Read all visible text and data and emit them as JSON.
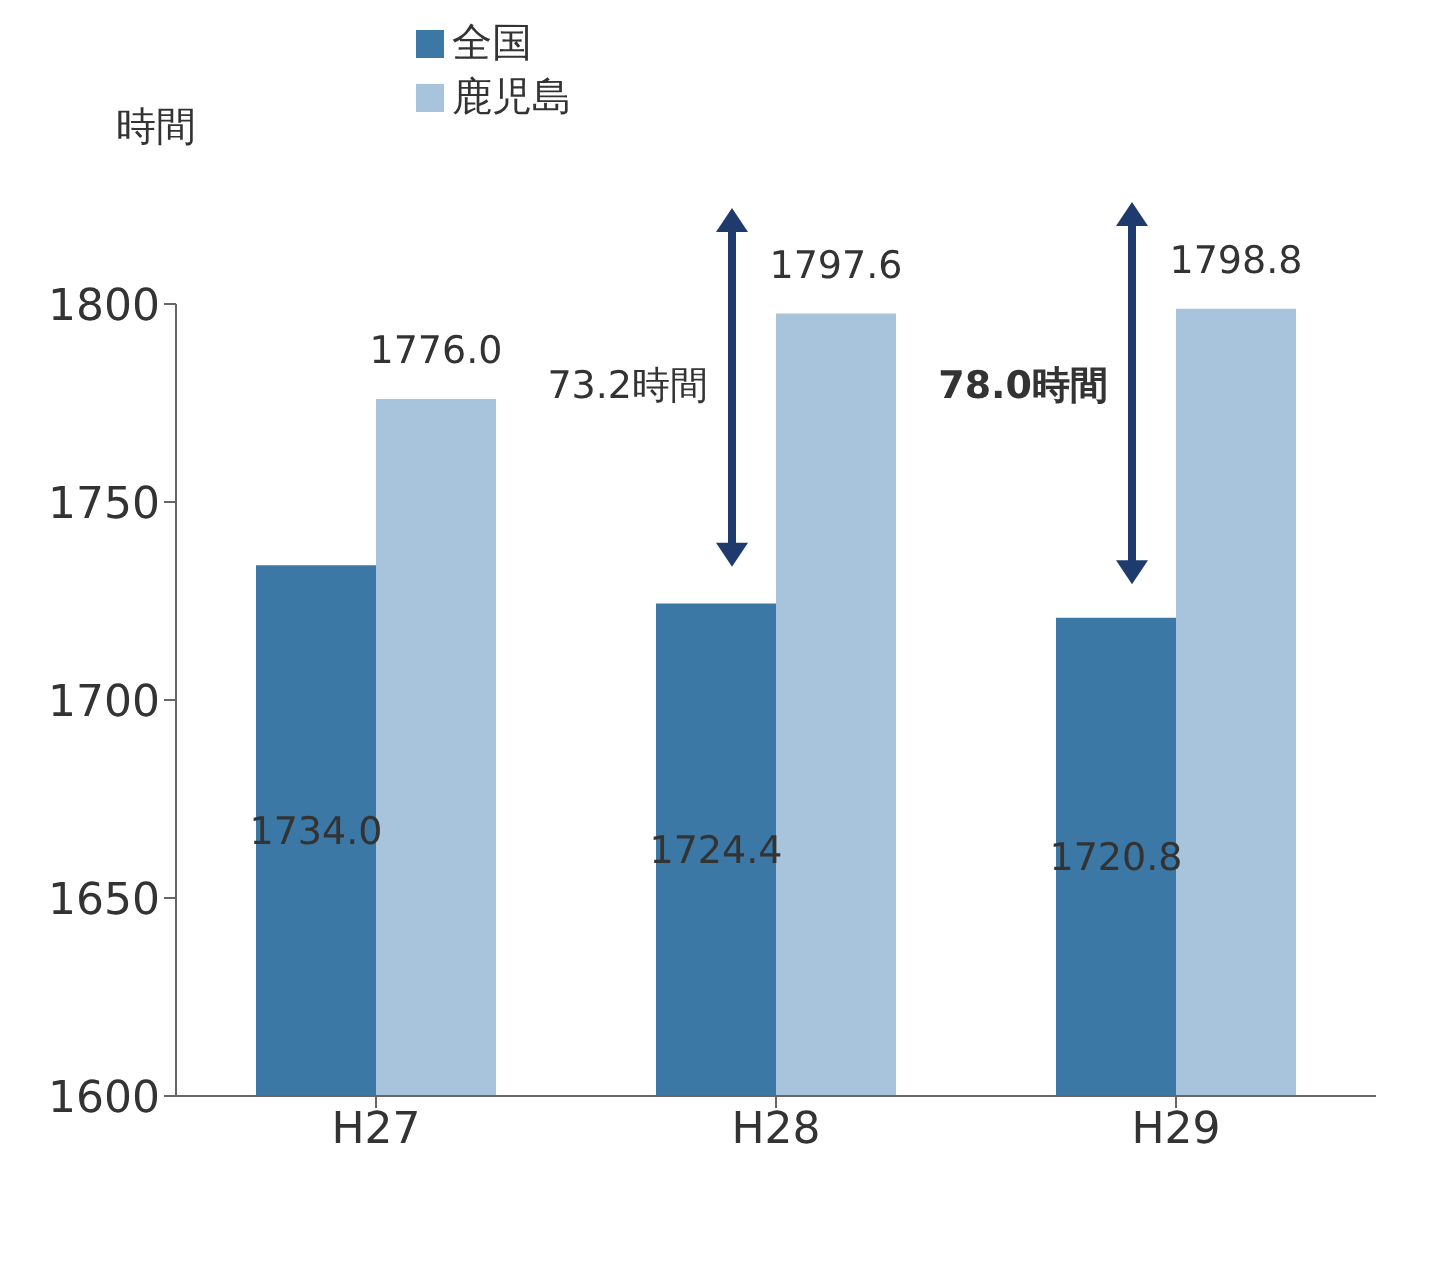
{
  "chart_data": {
    "type": "bar",
    "ylabel": "時間",
    "categories": [
      "H27",
      "H28",
      "H29"
    ],
    "series": [
      {
        "name": "全国",
        "color": "#3b78a6",
        "values": [
          1734.0,
          1724.4,
          1720.8
        ],
        "value_labels": [
          "1734.0",
          "1724.4",
          "1720.8"
        ]
      },
      {
        "name": "鹿児島",
        "color": "#a8c3dc",
        "values": [
          1776.0,
          1797.6,
          1798.8
        ],
        "value_labels": [
          "1776.0",
          "1797.6",
          "1798.8"
        ]
      }
    ],
    "ylim": [
      1600,
      1800
    ],
    "yticks": [
      1600,
      1650,
      1700,
      1750,
      1800
    ],
    "grid": false,
    "legend": "top",
    "annotations": [
      {
        "text": "73.2時間",
        "x": "H28",
        "y": 1761
      },
      {
        "text": "78.0時間",
        "x": "H29",
        "y": 1761
      }
    ]
  }
}
